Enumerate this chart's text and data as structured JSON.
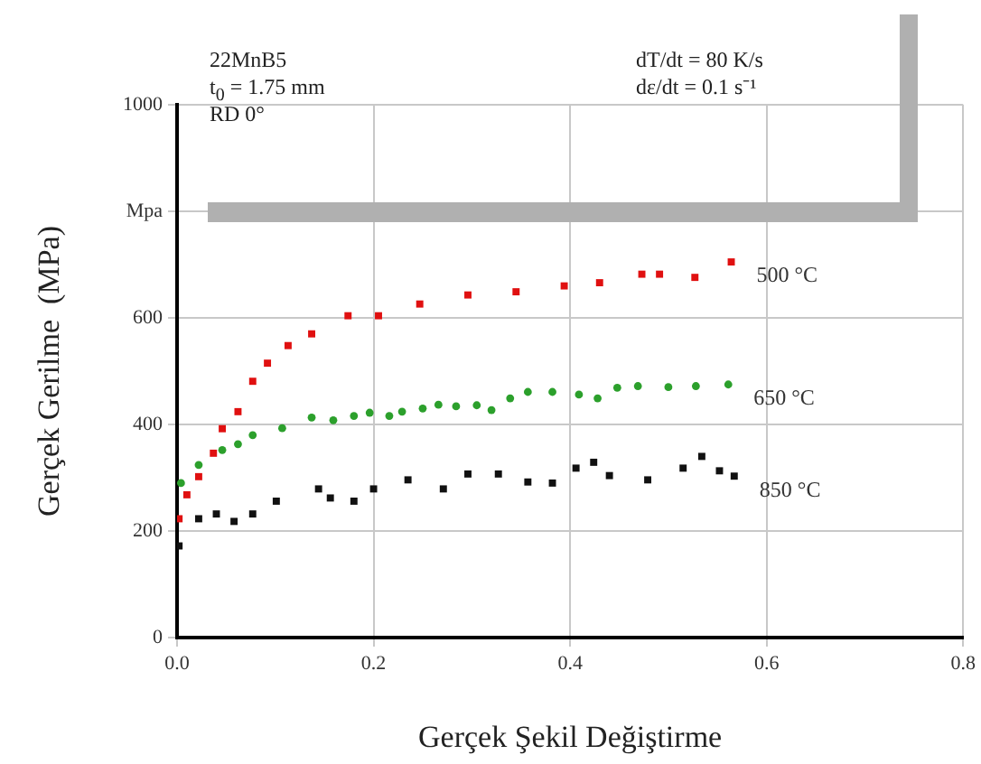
{
  "chart_data": {
    "type": "scatter",
    "xlabel": "Gerçek Şekil Değiştirme",
    "ylabel": "Gerçek Gerilme  (MPa)",
    "xlim": [
      0,
      0.8
    ],
    "xticks": [
      {
        "value": 0,
        "label": "0.0"
      },
      0.2,
      0.4,
      0.6,
      0.8
    ],
    "ylim": [
      0,
      1000
    ],
    "yticks": [
      0,
      200,
      400,
      600,
      {
        "value": 800,
        "label": "Mpa"
      },
      1000
    ],
    "grid": true,
    "legend": false,
    "annotations": [
      "22MnB5",
      "t$_{0}$ = 1.75 mm",
      "RD 0°",
      "dT/dt = 80 K/s",
      "dε/dt = 0.1 s⁻¹"
    ],
    "series": [
      {
        "name": "500 °C",
        "color": "#e01010",
        "marker": "square",
        "x": [
          0.002,
          0.01,
          0.022,
          0.037,
          0.046,
          0.062,
          0.077,
          0.092,
          0.113,
          0.137,
          0.174,
          0.205,
          0.247,
          0.296,
          0.345,
          0.394,
          0.43,
          0.473,
          0.491,
          0.527,
          0.564
        ],
        "values": [
          223,
          268,
          302,
          346,
          392,
          424,
          481,
          515,
          548,
          570,
          604,
          604,
          626,
          643,
          649,
          660,
          666,
          682,
          682,
          676,
          705
        ]
      },
      {
        "name": "650 °C",
        "color": "#2ca02c",
        "marker": "circle",
        "x": [
          0.004,
          0.022,
          0.046,
          0.062,
          0.077,
          0.107,
          0.137,
          0.159,
          0.18,
          0.196,
          0.216,
          0.229,
          0.25,
          0.266,
          0.284,
          0.305,
          0.32,
          0.339,
          0.357,
          0.382,
          0.409,
          0.428,
          0.448,
          0.469,
          0.5,
          0.528,
          0.561
        ],
        "values": [
          290,
          324,
          352,
          363,
          380,
          393,
          413,
          408,
          416,
          422,
          416,
          424,
          430,
          437,
          434,
          436,
          427,
          449,
          461,
          461,
          456,
          449,
          469,
          472,
          470,
          472,
          475
        ]
      },
      {
        "name": "850 °C",
        "color": "#111111",
        "marker": "square",
        "x": [
          0.002,
          0.022,
          0.04,
          0.058,
          0.077,
          0.101,
          0.144,
          0.156,
          0.18,
          0.2,
          0.235,
          0.271,
          0.296,
          0.327,
          0.357,
          0.382,
          0.406,
          0.424,
          0.44,
          0.479,
          0.515,
          0.534,
          0.552,
          0.567
        ],
        "values": [
          172,
          223,
          232,
          218,
          232,
          256,
          279,
          262,
          256,
          279,
          296,
          279,
          307,
          307,
          292,
          290,
          318,
          329,
          304,
          296,
          318,
          340,
          313,
          303
        ]
      }
    ]
  }
}
